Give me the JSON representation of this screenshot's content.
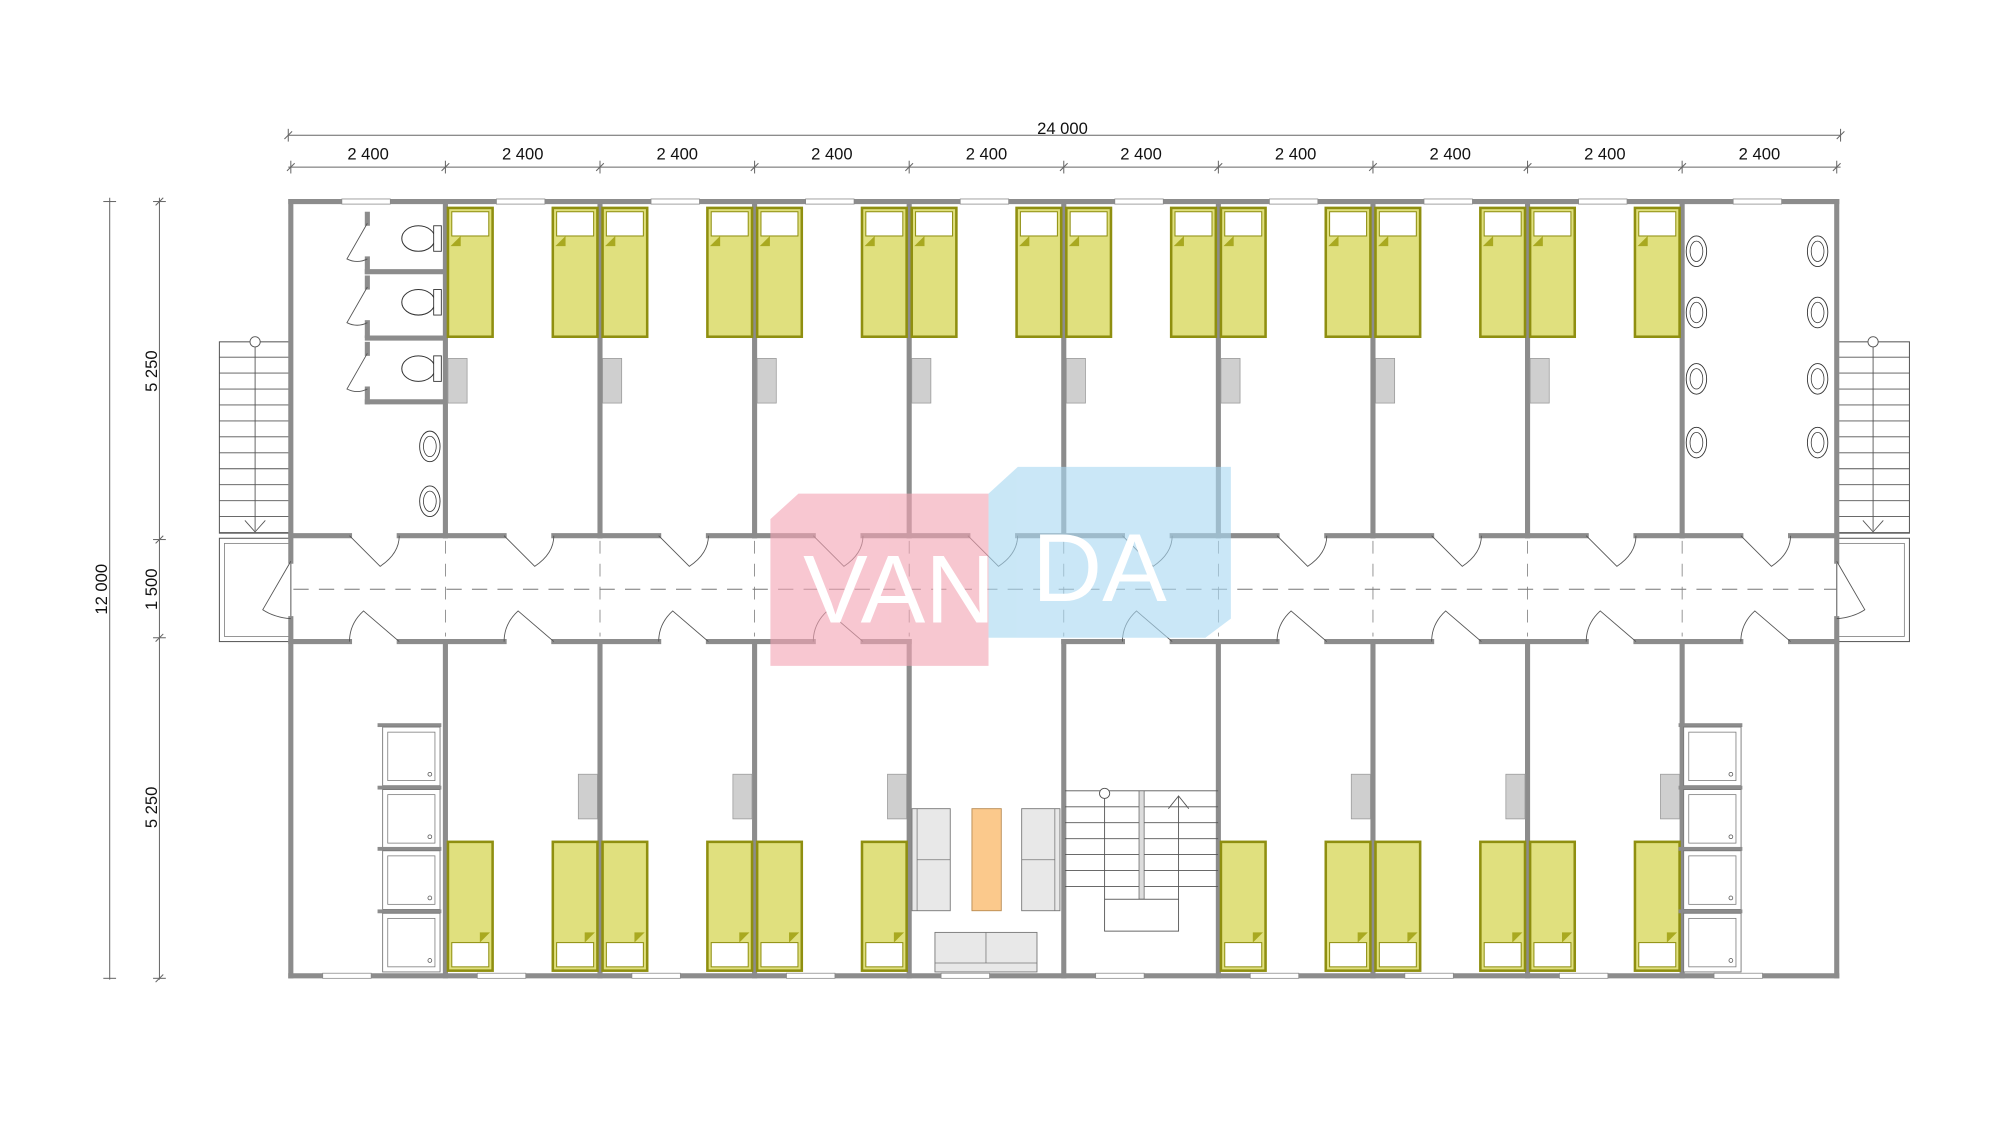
{
  "dimensions": {
    "overall_width": "24 000",
    "module_widths": [
      "2 400",
      "2 400",
      "2 400",
      "2 400",
      "2 400",
      "2 400",
      "2 400",
      "2 400",
      "2 400",
      "2 400"
    ],
    "overall_depth": "12 000",
    "depths": [
      "5 250",
      "1 500",
      "5 250"
    ]
  },
  "watermark": {
    "text_left": "VAN",
    "text_right": "DA",
    "pink": "#f3a5b4",
    "blue": "#a9d9f2"
  },
  "colors": {
    "wall": "#8c8c8c",
    "bed": "#e0e07e",
    "bed_border": "#8f8f10",
    "desk": "#cfcfcf",
    "table": "#fbc98c",
    "sofa": "#e8e8e8"
  },
  "layout": {
    "modules": 10,
    "top_rooms": [
      "wc",
      "bedroom",
      "bedroom",
      "bedroom",
      "bedroom",
      "bedroom",
      "bedroom",
      "bedroom",
      "bedroom",
      "washroom"
    ],
    "bottom_rooms": [
      "showers",
      "bedroom",
      "bedroom",
      "bedroom",
      "lounge",
      "staircase",
      "bedroom",
      "bedroom",
      "bedroom",
      "showers"
    ]
  }
}
